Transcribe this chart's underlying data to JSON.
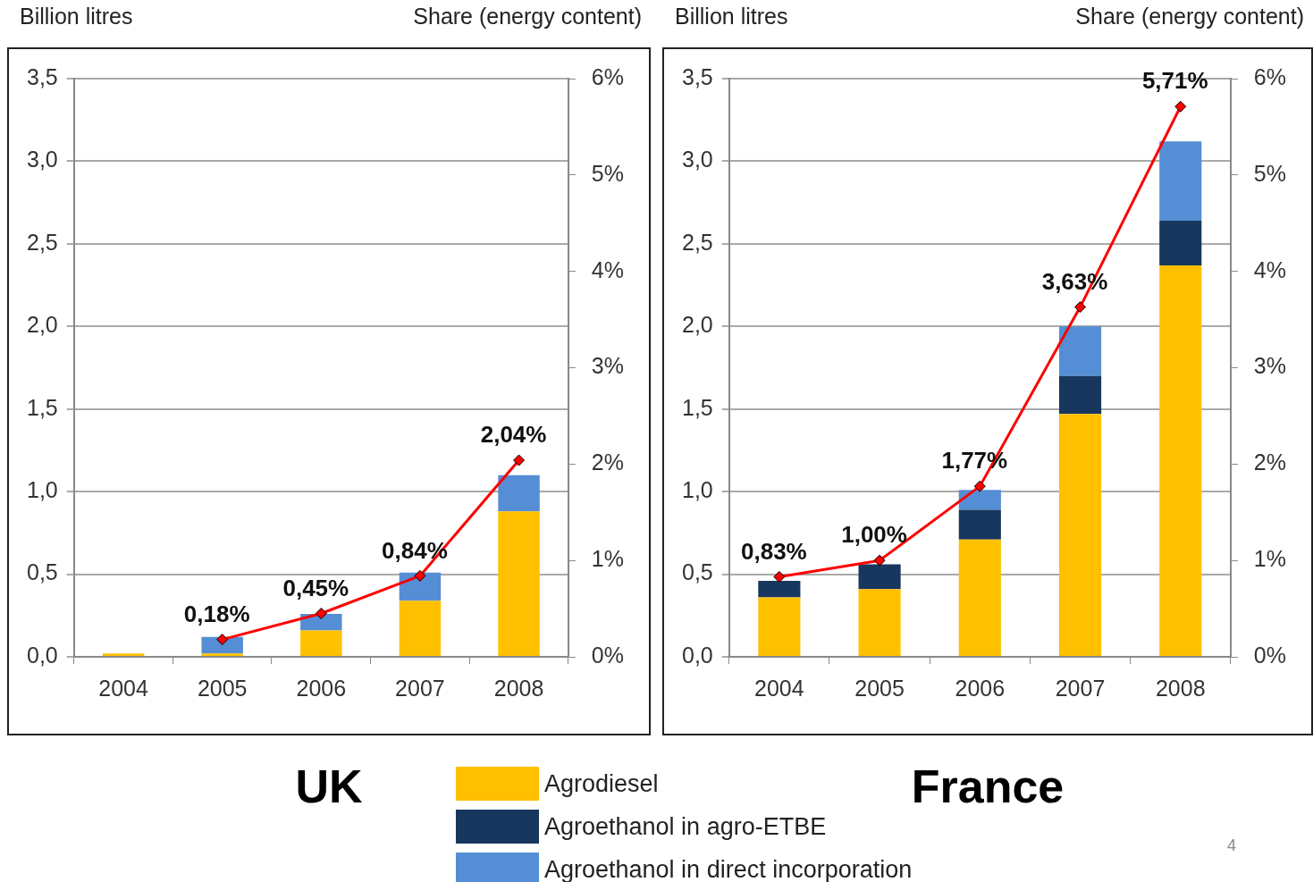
{
  "chart_data": [
    {
      "type": "bar",
      "title": "UK",
      "ylabel": "Billion litres",
      "y2label": "Share (energy content)",
      "stacked": true,
      "grid": "y",
      "legend": "bottom",
      "marker": "diamond",
      "categories": [
        "2004",
        "2005",
        "2006",
        "2007",
        "2008"
      ],
      "ylim": [
        0,
        3.5
      ],
      "yticks": [
        {
          "value": 0,
          "label": "0,0"
        },
        {
          "value": 0.5,
          "label": "0,5"
        },
        {
          "value": 1,
          "label": "1,0"
        },
        {
          "value": 1.5,
          "label": "1,5"
        },
        {
          "value": 2,
          "label": "2,0"
        },
        {
          "value": 2.5,
          "label": "2,5"
        },
        {
          "value": 3,
          "label": "3,0"
        },
        {
          "value": 3.5,
          "label": "3,5"
        }
      ],
      "y2lim": [
        0,
        6
      ],
      "y2ticks": [
        {
          "value": 0,
          "label": "0%"
        },
        {
          "value": 1,
          "label": "1%"
        },
        {
          "value": 2,
          "label": "2%"
        },
        {
          "value": 3,
          "label": "3%"
        },
        {
          "value": 4,
          "label": "4%"
        },
        {
          "value": 5,
          "label": "5%"
        },
        {
          "value": 6,
          "label": "6%"
        }
      ],
      "series": [
        {
          "name": "Agrodiesel",
          "color": "#ffc000",
          "values": [
            0.02,
            0.02,
            0.16,
            0.34,
            0.88
          ]
        },
        {
          "name": "Agroethanol in agro-ETBE",
          "color": "#17375e",
          "values": [
            null,
            null,
            null,
            null,
            null
          ]
        },
        {
          "name": "Agroethanol in direct incorporation",
          "color": "#558ed5",
          "values": [
            null,
            0.1,
            0.1,
            0.17,
            0.22
          ]
        },
        {
          "type": "line",
          "axis": "y2",
          "color": "#ff0000",
          "values": [
            null,
            0.18,
            0.45,
            0.84,
            2.04
          ],
          "value_labels": [
            null,
            "0,18%",
            "0,45%",
            "0,84%",
            "2,04%"
          ]
        }
      ]
    },
    {
      "type": "bar",
      "title": "France",
      "ylabel": "Billion litres",
      "y2label": "Share (energy content)",
      "stacked": true,
      "grid": "y",
      "marker": "diamond",
      "categories": [
        "2004",
        "2005",
        "2006",
        "2007",
        "2008"
      ],
      "ylim": [
        0,
        3.5
      ],
      "yticks": [
        {
          "value": 0,
          "label": "0,0"
        },
        {
          "value": 0.5,
          "label": "0,5"
        },
        {
          "value": 1,
          "label": "1,0"
        },
        {
          "value": 1.5,
          "label": "1,5"
        },
        {
          "value": 2,
          "label": "2,0"
        },
        {
          "value": 2.5,
          "label": "2,5"
        },
        {
          "value": 3,
          "label": "3,0"
        },
        {
          "value": 3.5,
          "label": "3,5"
        }
      ],
      "y2lim": [
        0,
        6
      ],
      "y2ticks": [
        {
          "value": 0,
          "label": "0%"
        },
        {
          "value": 1,
          "label": "1%"
        },
        {
          "value": 2,
          "label": "2%"
        },
        {
          "value": 3,
          "label": "3%"
        },
        {
          "value": 4,
          "label": "4%"
        },
        {
          "value": 5,
          "label": "5%"
        },
        {
          "value": 6,
          "label": "6%"
        }
      ],
      "annotations": [
        "4"
      ],
      "series": [
        {
          "color": "#ffc000",
          "values": [
            0.36,
            0.41,
            0.71,
            1.47,
            2.37
          ]
        },
        {
          "color": "#17375e",
          "values": [
            0.1,
            0.15,
            0.18,
            0.23,
            0.27
          ]
        },
        {
          "color": "#558ed5",
          "values": [
            null,
            null,
            0.12,
            0.3,
            0.48
          ]
        },
        {
          "type": "line",
          "axis": "y2",
          "color": "#ff0000",
          "values": [
            0.83,
            1.0,
            1.77,
            3.63,
            5.71
          ],
          "value_labels": [
            "0,83%",
            "1,00%",
            "1,77%",
            "3,63%",
            "5,71%"
          ]
        }
      ]
    }
  ]
}
